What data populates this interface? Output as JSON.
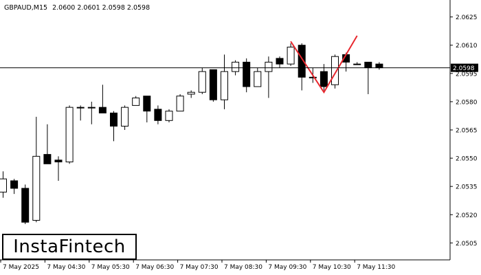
{
  "header": {
    "symbol": "GBPAUD,M15",
    "ohlc": "2.0600 2.0601 2.0598 2.0598"
  },
  "logo": {
    "text": "InstaFintech"
  },
  "chart_data": {
    "type": "candlestick",
    "title": "GBPAUD,M15",
    "ylim": [
      2.0496,
      2.0634
    ],
    "y_ticks": [
      "2.0625",
      "2.0610",
      "2.0595",
      "2.0580",
      "2.0565",
      "2.0550",
      "2.0535",
      "2.0520",
      "2.0505"
    ],
    "x_ticks": [
      "7 May 2025",
      "7 May 04:30",
      "7 May 05:30",
      "7 May 06:30",
      "7 May 07:30",
      "7 May 08:30",
      "7 May 09:30",
      "7 May 10:30",
      "7 May 11:30"
    ],
    "current_price": "2.0598",
    "candles": [
      {
        "o": 2.0532,
        "h": 2.0543,
        "l": 2.0529,
        "c": 2.0539
      },
      {
        "o": 2.0538,
        "h": 2.0539,
        "l": 2.0531,
        "c": 2.0534
      },
      {
        "o": 2.0534,
        "h": 2.0536,
        "l": 2.0515,
        "c": 2.0516
      },
      {
        "o": 2.0517,
        "h": 2.0572,
        "l": 2.0516,
        "c": 2.0551
      },
      {
        "o": 2.0552,
        "h": 2.0568,
        "l": 2.0547,
        "c": 2.0547
      },
      {
        "o": 2.0549,
        "h": 2.0551,
        "l": 2.0538,
        "c": 2.0548
      },
      {
        "o": 2.0548,
        "h": 2.0578,
        "l": 2.0547,
        "c": 2.0577
      },
      {
        "o": 2.0577,
        "h": 2.0578,
        "l": 2.057,
        "c": 2.0577
      },
      {
        "o": 2.0577,
        "h": 2.058,
        "l": 2.0568,
        "c": 2.0577
      },
      {
        "o": 2.0577,
        "h": 2.0589,
        "l": 2.0575,
        "c": 2.0574
      },
      {
        "o": 2.0574,
        "h": 2.0575,
        "l": 2.0559,
        "c": 2.0567
      },
      {
        "o": 2.0567,
        "h": 2.0578,
        "l": 2.0565,
        "c": 2.0577
      },
      {
        "o": 2.0578,
        "h": 2.0583,
        "l": 2.0578,
        "c": 2.0582
      },
      {
        "o": 2.0583,
        "h": 2.0583,
        "l": 2.0569,
        "c": 2.0575
      },
      {
        "o": 2.0576,
        "h": 2.0578,
        "l": 2.0568,
        "c": 2.057
      },
      {
        "o": 2.057,
        "h": 2.0576,
        "l": 2.0569,
        "c": 2.0575
      },
      {
        "o": 2.0575,
        "h": 2.0584,
        "l": 2.0575,
        "c": 2.0583
      },
      {
        "o": 2.0584,
        "h": 2.0586,
        "l": 2.0582,
        "c": 2.0585
      },
      {
        "o": 2.0585,
        "h": 2.0598,
        "l": 2.0584,
        "c": 2.0596
      },
      {
        "o": 2.0597,
        "h": 2.0597,
        "l": 2.058,
        "c": 2.0581
      },
      {
        "o": 2.0581,
        "h": 2.0605,
        "l": 2.0576,
        "c": 2.0596
      },
      {
        "o": 2.0596,
        "h": 2.0602,
        "l": 2.0594,
        "c": 2.0601
      },
      {
        "o": 2.0601,
        "h": 2.0603,
        "l": 2.0585,
        "c": 2.0588
      },
      {
        "o": 2.0588,
        "h": 2.0598,
        "l": 2.0588,
        "c": 2.0596
      },
      {
        "o": 2.0596,
        "h": 2.0604,
        "l": 2.0582,
        "c": 2.0601
      },
      {
        "o": 2.0603,
        "h": 2.0604,
        "l": 2.0598,
        "c": 2.06
      },
      {
        "o": 2.06,
        "h": 2.0611,
        "l": 2.0599,
        "c": 2.0609
      },
      {
        "o": 2.061,
        "h": 2.0611,
        "l": 2.0586,
        "c": 2.0593
      },
      {
        "o": 2.0593,
        "h": 2.0598,
        "l": 2.059,
        "c": 2.0593
      },
      {
        "o": 2.0596,
        "h": 2.06,
        "l": 2.0586,
        "c": 2.0588
      },
      {
        "o": 2.0589,
        "h": 2.0605,
        "l": 2.0587,
        "c": 2.0604
      },
      {
        "o": 2.0605,
        "h": 2.0606,
        "l": 2.0596,
        "c": 2.0601
      },
      {
        "o": 2.06,
        "h": 2.0601,
        "l": 2.06,
        "c": 2.06
      },
      {
        "o": 2.0601,
        "h": 2.0601,
        "l": 2.0584,
        "c": 2.0598
      },
      {
        "o": 2.06,
        "h": 2.0601,
        "l": 2.0597,
        "c": 2.0598
      }
    ],
    "pattern": {
      "name": "Double Top",
      "color": "#e8262d",
      "points": [
        {
          "candle": 26,
          "price": 2.0612
        },
        {
          "candle": 29,
          "price": 2.0585
        },
        {
          "candle": 32,
          "price": 2.0615
        }
      ]
    },
    "colors": {
      "candle": "#000000",
      "bull_fill": "#ffffff",
      "bear_fill": "#000000",
      "axis": "#000000",
      "grid": "none"
    }
  }
}
